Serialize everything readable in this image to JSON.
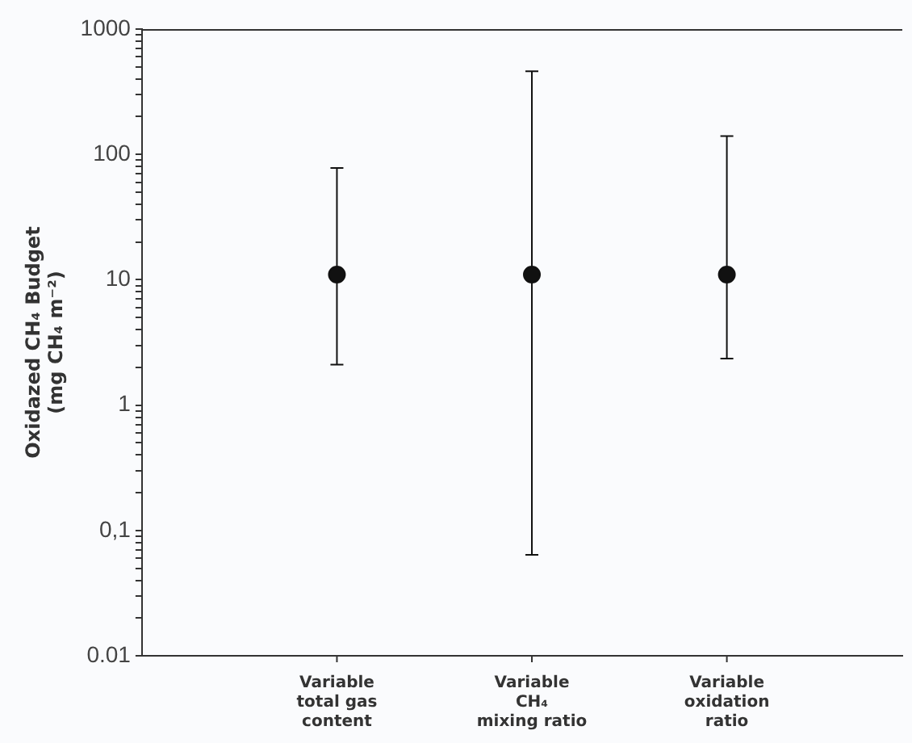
{
  "chart_data": {
    "type": "scatter",
    "ylabel": "Oxidazed CH₄ Budget\n(mg CH₄ m⁻²)",
    "categories": [
      "Variable\ntotal gas\ncontent",
      "Variable\nCH₄\nmixing ratio",
      "Variable\noxidation\nratio"
    ],
    "values": [
      11,
      11,
      11
    ],
    "errors": [
      [
        2.1,
        78
      ],
      [
        0.064,
        460
      ],
      [
        2.35,
        140
      ]
    ],
    "color": "#111111",
    "marker": "circle",
    "log": true,
    "grid": false,
    "legend": false,
    "ylim": [
      0.01,
      1000
    ],
    "yticks": [
      {
        "value": 0.01,
        "label": "0.01"
      },
      {
        "value": 0.02,
        "label": null
      },
      {
        "value": 0.03,
        "label": null
      },
      {
        "value": 0.04,
        "label": null
      },
      {
        "value": 0.05,
        "label": null
      },
      {
        "value": 0.06,
        "label": null
      },
      {
        "value": 0.07,
        "label": null
      },
      {
        "value": 0.08,
        "label": null
      },
      {
        "value": 0.09,
        "label": null
      },
      {
        "value": 0.1,
        "label": "0,1"
      },
      {
        "value": 0.2,
        "label": null
      },
      {
        "value": 0.3,
        "label": null
      },
      {
        "value": 0.4,
        "label": null
      },
      {
        "value": 0.5,
        "label": null
      },
      {
        "value": 0.6,
        "label": null
      },
      {
        "value": 0.7,
        "label": null
      },
      {
        "value": 0.8,
        "label": null
      },
      {
        "value": 0.9,
        "label": null
      },
      1,
      {
        "value": 2,
        "label": null
      },
      {
        "value": 3,
        "label": null
      },
      {
        "value": 4,
        "label": null
      },
      {
        "value": 5,
        "label": null
      },
      {
        "value": 6,
        "label": null
      },
      {
        "value": 7,
        "label": null
      },
      {
        "value": 8,
        "label": null
      },
      {
        "value": 9,
        "label": null
      },
      10,
      {
        "value": 20,
        "label": null
      },
      {
        "value": 30,
        "label": null
      },
      {
        "value": 40,
        "label": null
      },
      {
        "value": 50,
        "label": null
      },
      {
        "value": 60,
        "label": null
      },
      {
        "value": 70,
        "label": null
      },
      {
        "value": 80,
        "label": null
      },
      {
        "value": 90,
        "label": null
      },
      100,
      {
        "value": 200,
        "label": null
      },
      {
        "value": 300,
        "label": null
      },
      {
        "value": 400,
        "label": null
      },
      {
        "value": 500,
        "label": null
      },
      {
        "value": 600,
        "label": null
      },
      {
        "value": 700,
        "label": null
      },
      {
        "value": 800,
        "label": null
      },
      {
        "value": 900,
        "label": null
      },
      1000
    ]
  }
}
